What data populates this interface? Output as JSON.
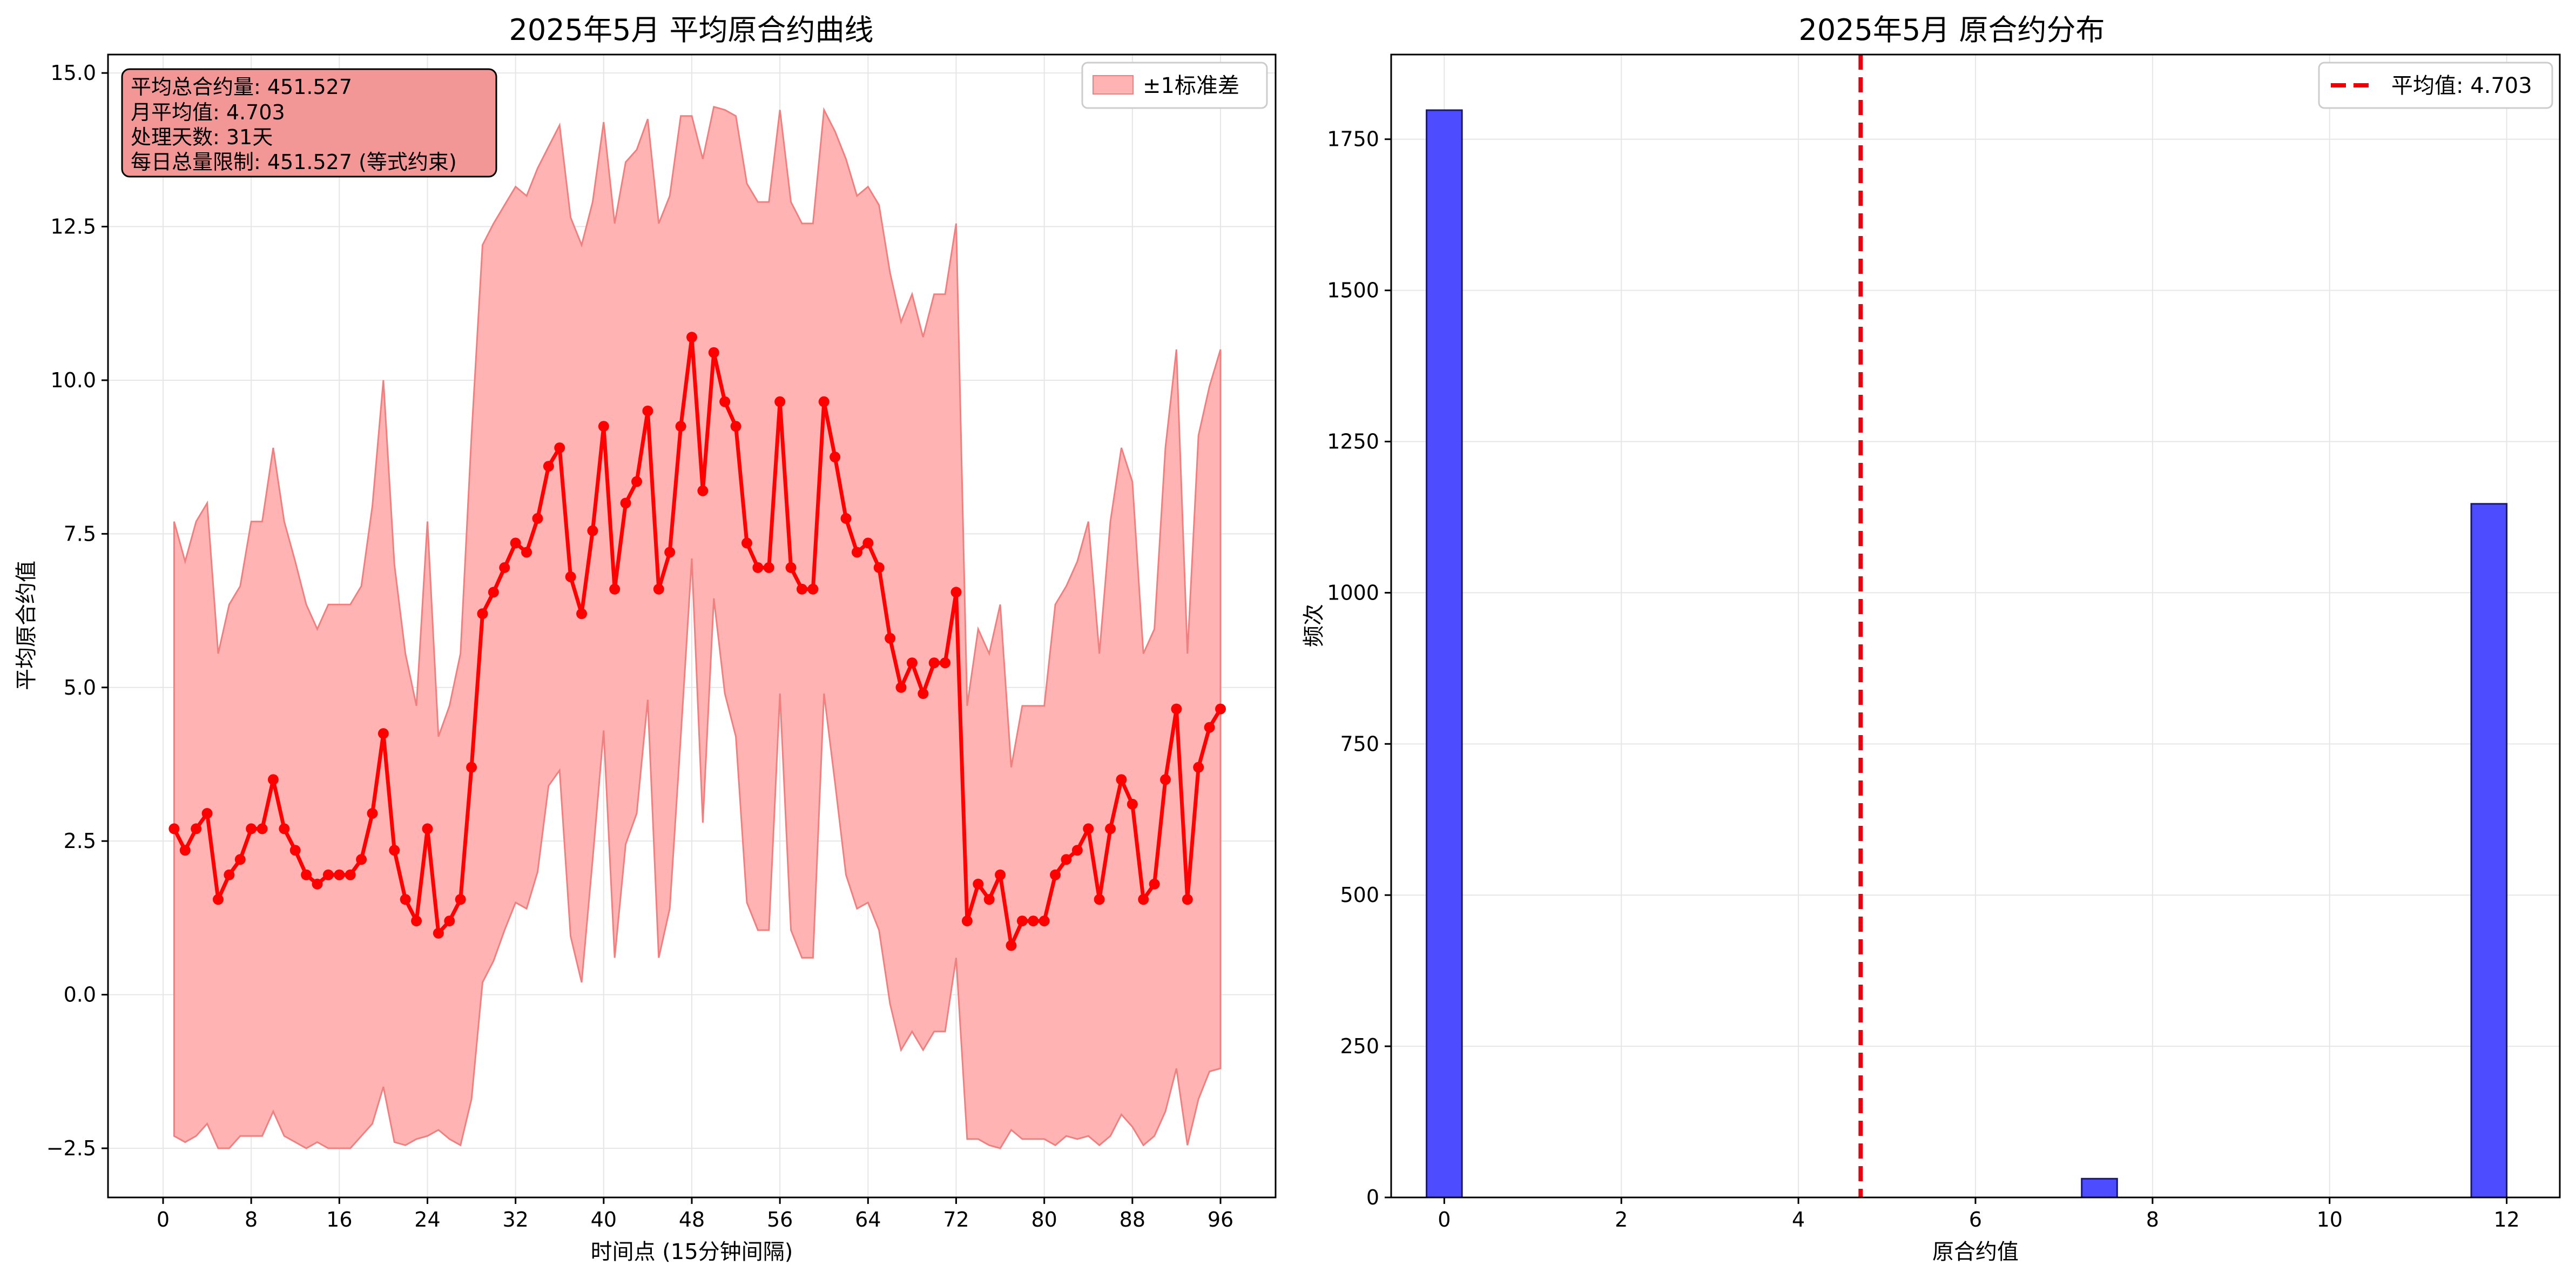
{
  "colors": {
    "line": "#ff0000",
    "band_fill": "#ffb3b3",
    "band_stroke": "#f08080",
    "bar_fill": "#4d4dff",
    "bar_stroke": "#1a1a66",
    "mean_line": "#e8000b",
    "info_box_fill": "#f29696",
    "grid": "#e6e6e6"
  },
  "chart_data": [
    {
      "type": "line",
      "title": "2025年5月 平均原合约曲线",
      "xlabel": "时间点 (15分钟间隔)",
      "ylabel": "平均原合约值",
      "xlim": [
        -5,
        101
      ],
      "ylim": [
        -3.3,
        15.3
      ],
      "xticks": [
        0,
        8,
        16,
        24,
        32,
        40,
        48,
        56,
        64,
        72,
        80,
        88,
        96
      ],
      "yticks": [
        -2.5,
        0.0,
        2.5,
        5.0,
        7.5,
        10.0,
        12.5,
        15.0
      ],
      "ytick_labels": [
        "−2.5",
        "0.0",
        "2.5",
        "5.0",
        "7.5",
        "10.0",
        "12.5",
        "15.0"
      ],
      "grid": true,
      "legend_position": "upper-right",
      "band_label": "±1标准差",
      "info_box": [
        "平均总合约量: 451.527",
        "月平均值: 4.703",
        "处理天数: 31天",
        "每日总量限制: 451.527 (等式约束)"
      ],
      "x": [
        1,
        2,
        3,
        4,
        5,
        6,
        7,
        8,
        9,
        10,
        11,
        12,
        13,
        14,
        15,
        16,
        17,
        18,
        19,
        20,
        21,
        22,
        23,
        24,
        25,
        26,
        27,
        28,
        29,
        30,
        31,
        32,
        33,
        34,
        35,
        36,
        37,
        38,
        39,
        40,
        41,
        42,
        43,
        44,
        45,
        46,
        47,
        48,
        49,
        50,
        51,
        52,
        53,
        54,
        55,
        56,
        57,
        58,
        59,
        60,
        61,
        62,
        63,
        64,
        65,
        66,
        67,
        68,
        69,
        70,
        71,
        72,
        73,
        74,
        75,
        76,
        77,
        78,
        79,
        80,
        81,
        82,
        83,
        84,
        85,
        86,
        87,
        88,
        89,
        90,
        91,
        92,
        93,
        94,
        95,
        96
      ],
      "mean": [
        2.7,
        2.35,
        2.7,
        2.95,
        1.55,
        1.95,
        2.2,
        2.7,
        2.7,
        3.5,
        2.7,
        2.35,
        1.95,
        1.8,
        1.95,
        1.95,
        1.95,
        2.2,
        2.95,
        4.25,
        2.35,
        1.55,
        1.2,
        2.7,
        1.0,
        1.2,
        1.55,
        3.7,
        6.2,
        6.55,
        6.95,
        7.35,
        7.2,
        7.75,
        8.6,
        8.9,
        6.8,
        6.2,
        7.55,
        9.25,
        6.6,
        8.0,
        8.35,
        9.5,
        6.6,
        7.2,
        9.25,
        10.7,
        8.2,
        10.45,
        9.65,
        9.25,
        7.35,
        6.95,
        6.95,
        9.65,
        6.95,
        6.6,
        6.6,
        9.65,
        8.75,
        7.75,
        7.2,
        7.35,
        6.95,
        5.8,
        5.0,
        5.4,
        4.9,
        5.4,
        5.4,
        6.55,
        1.2,
        1.8,
        1.55,
        1.95,
        0.8,
        1.2,
        1.2,
        1.2,
        1.95,
        2.2,
        2.35,
        2.7,
        1.55,
        2.7,
        3.5,
        3.1,
        1.55,
        1.8,
        3.5,
        4.65,
        1.55,
        3.7,
        4.35,
        4.65
      ],
      "upper": [
        7.7,
        7.05,
        7.7,
        8.0,
        5.55,
        6.35,
        6.65,
        7.7,
        7.7,
        8.9,
        7.7,
        7.05,
        6.35,
        5.95,
        6.35,
        6.35,
        6.35,
        6.65,
        7.95,
        10.0,
        7.0,
        5.55,
        4.7,
        7.7,
        4.2,
        4.7,
        5.55,
        9.1,
        12.2,
        12.55,
        12.85,
        13.15,
        13.0,
        13.45,
        13.8,
        14.15,
        12.65,
        12.2,
        12.9,
        14.2,
        12.55,
        13.55,
        13.75,
        14.25,
        12.55,
        13.0,
        14.3,
        14.3,
        13.6,
        14.45,
        14.4,
        14.3,
        13.2,
        12.9,
        12.9,
        14.4,
        12.9,
        12.55,
        12.55,
        14.4,
        14.05,
        13.6,
        13.0,
        13.15,
        12.85,
        11.75,
        10.95,
        11.4,
        10.7,
        11.4,
        11.4,
        12.55,
        4.7,
        5.95,
        5.55,
        6.35,
        3.7,
        4.7,
        4.7,
        4.7,
        6.35,
        6.65,
        7.05,
        7.7,
        5.55,
        7.7,
        8.9,
        8.35,
        5.55,
        5.95,
        8.9,
        10.5,
        5.55,
        9.1,
        9.9,
        10.5
      ],
      "lower": [
        -2.3,
        -2.4,
        -2.3,
        -2.1,
        -2.5,
        -2.5,
        -2.3,
        -2.3,
        -2.3,
        -1.9,
        -2.3,
        -2.4,
        -2.5,
        -2.4,
        -2.5,
        -2.5,
        -2.5,
        -2.3,
        -2.1,
        -1.5,
        -2.4,
        -2.45,
        -2.35,
        -2.3,
        -2.2,
        -2.35,
        -2.45,
        -1.7,
        0.2,
        0.55,
        1.05,
        1.5,
        1.4,
        2.0,
        3.4,
        3.65,
        0.95,
        0.2,
        2.2,
        4.3,
        0.6,
        2.45,
        2.95,
        4.8,
        0.6,
        1.4,
        4.2,
        7.1,
        2.8,
        6.45,
        4.9,
        4.2,
        1.5,
        1.05,
        1.05,
        4.9,
        1.05,
        0.6,
        0.6,
        4.9,
        3.45,
        1.95,
        1.4,
        1.5,
        1.05,
        -0.15,
        -0.9,
        -0.6,
        -0.9,
        -0.6,
        -0.6,
        0.6,
        -2.35,
        -2.35,
        -2.45,
        -2.5,
        -2.2,
        -2.35,
        -2.35,
        -2.35,
        -2.45,
        -2.3,
        -2.35,
        -2.3,
        -2.45,
        -2.3,
        -1.95,
        -2.15,
        -2.45,
        -2.3,
        -1.9,
        -1.2,
        -2.45,
        -1.7,
        -1.25,
        -1.2
      ]
    },
    {
      "type": "bar",
      "title": "2025年5月 原合约分布",
      "xlabel": "原合约值",
      "ylabel": "频次",
      "xlim": [
        -0.6,
        12.6
      ],
      "ylim": [
        0,
        1890
      ],
      "xticks": [
        0,
        2,
        4,
        6,
        8,
        10,
        12
      ],
      "yticks": [
        0,
        250,
        500,
        750,
        1000,
        1250,
        1500,
        1750
      ],
      "grid": true,
      "legend_position": "upper-right",
      "bin_width": 0.4,
      "bins": [
        {
          "x": 0.0,
          "count": 1798
        },
        {
          "x": 7.4,
          "count": 31
        },
        {
          "x": 11.8,
          "count": 1147
        }
      ],
      "mean_value": 4.703,
      "mean_label": "平均值: 4.703"
    }
  ]
}
